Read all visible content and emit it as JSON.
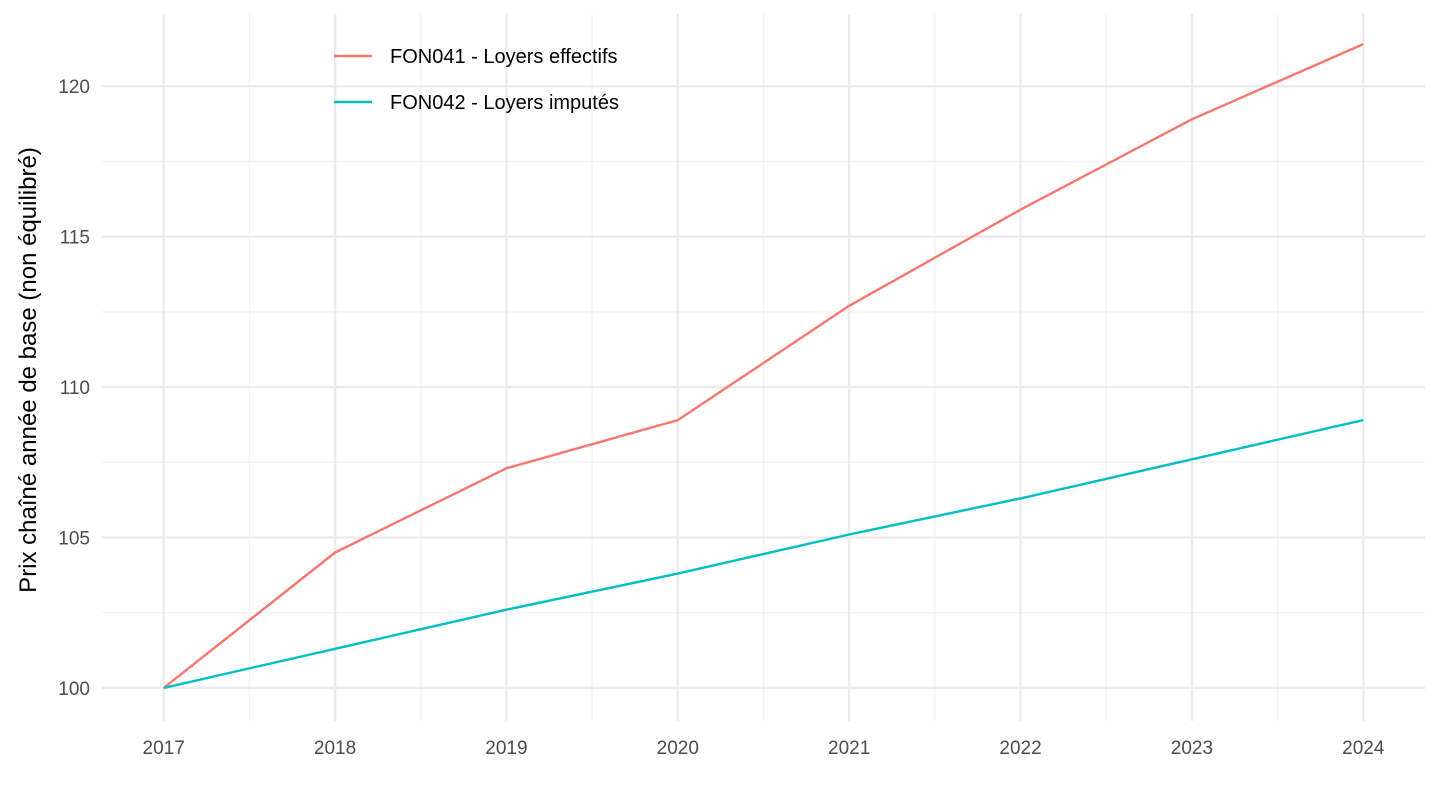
{
  "chart_data": {
    "type": "line",
    "title": "",
    "xlabel": "",
    "ylabel": "Prix chaîné année de base (non équilibré)",
    "x": [
      2017,
      2018,
      2019,
      2020,
      2021,
      2022,
      2023,
      2024
    ],
    "xlim": [
      2016.64,
      2024.36
    ],
    "ylim": [
      98.9,
      122.4
    ],
    "xticks": [
      "2017",
      "2018",
      "2019",
      "2020",
      "2021",
      "2022",
      "2023",
      "2024"
    ],
    "yticks": [
      "100",
      "105",
      "110",
      "115",
      "120"
    ],
    "grid": true,
    "legend_position": "top-left",
    "series": [
      {
        "name": "FON041 - Loyers effectifs",
        "color": "#F8766D",
        "values": [
          100,
          104.5,
          107.3,
          108.9,
          112.7,
          115.9,
          118.9,
          121.4
        ]
      },
      {
        "name": "FON042 - Loyers imputés",
        "color": "#00BFC4",
        "values": [
          100,
          101.3,
          102.6,
          103.8,
          105.1,
          106.3,
          107.6,
          108.9
        ]
      }
    ]
  }
}
